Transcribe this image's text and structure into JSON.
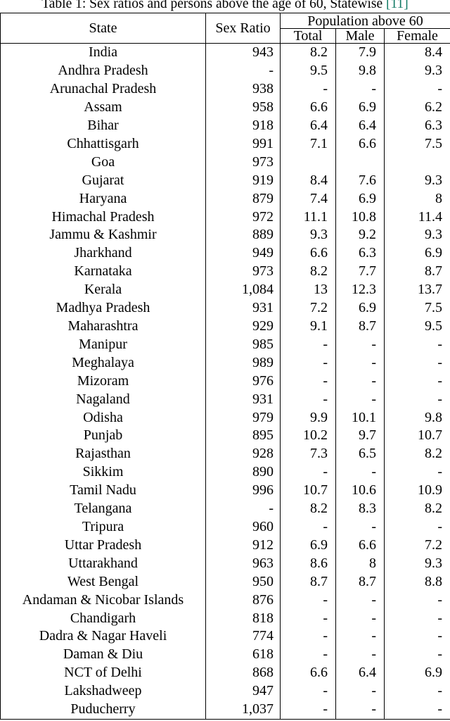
{
  "colors": {
    "citation": "#117a65",
    "text": "#000000",
    "background": "#ffffff"
  },
  "caption": {
    "prefix": "Table 1: Sex ratios and persons above the age of 60, Statewise ",
    "citation": "[11]"
  },
  "table": {
    "headers": {
      "state": "State",
      "sex_ratio": "Sex Ratio",
      "pop_group": "Population above 60",
      "total": "Total",
      "male": "Male",
      "female": "Female"
    },
    "rows": [
      {
        "state": "India",
        "sex_ratio": "943",
        "total": "8.2",
        "male": "7.9",
        "female": "8.4"
      },
      {
        "state": "Andhra Pradesh",
        "sex_ratio": "-",
        "total": "9.5",
        "male": "9.8",
        "female": "9.3"
      },
      {
        "state": "Arunachal Pradesh",
        "sex_ratio": "938",
        "total": "-",
        "male": "-",
        "female": "-"
      },
      {
        "state": "Assam",
        "sex_ratio": "958",
        "total": "6.6",
        "male": "6.9",
        "female": "6.2"
      },
      {
        "state": "Bihar",
        "sex_ratio": "918",
        "total": "6.4",
        "male": "6.4",
        "female": "6.3"
      },
      {
        "state": "Chhattisgarh",
        "sex_ratio": "991",
        "total": "7.1",
        "male": "6.6",
        "female": "7.5"
      },
      {
        "state": "Goa",
        "sex_ratio": "973",
        "total": "",
        "male": "",
        "female": ""
      },
      {
        "state": "Gujarat",
        "sex_ratio": "919",
        "total": "8.4",
        "male": "7.6",
        "female": "9.3"
      },
      {
        "state": "Haryana",
        "sex_ratio": "879",
        "total": "7.4",
        "male": "6.9",
        "female": "8"
      },
      {
        "state": "Himachal Pradesh",
        "sex_ratio": "972",
        "total": "11.1",
        "male": "10.8",
        "female": "11.4"
      },
      {
        "state": "Jammu & Kashmir",
        "sex_ratio": "889",
        "total": "9.3",
        "male": "9.2",
        "female": "9.3"
      },
      {
        "state": "Jharkhand",
        "sex_ratio": "949",
        "total": "6.6",
        "male": "6.3",
        "female": "6.9"
      },
      {
        "state": "Karnataka",
        "sex_ratio": "973",
        "total": "8.2",
        "male": "7.7",
        "female": "8.7"
      },
      {
        "state": "Kerala",
        "sex_ratio": "1,084",
        "total": "13",
        "male": "12.3",
        "female": "13.7"
      },
      {
        "state": "Madhya Pradesh",
        "sex_ratio": "931",
        "total": "7.2",
        "male": "6.9",
        "female": "7.5"
      },
      {
        "state": "Maharashtra",
        "sex_ratio": "929",
        "total": "9.1",
        "male": "8.7",
        "female": "9.5"
      },
      {
        "state": "Manipur",
        "sex_ratio": "985",
        "total": "-",
        "male": "-",
        "female": "-"
      },
      {
        "state": "Meghalaya",
        "sex_ratio": "989",
        "total": "-",
        "male": "-",
        "female": "-"
      },
      {
        "state": "Mizoram",
        "sex_ratio": "976",
        "total": "-",
        "male": "-",
        "female": "-"
      },
      {
        "state": "Nagaland",
        "sex_ratio": "931",
        "total": "-",
        "male": "-",
        "female": "-"
      },
      {
        "state": "Odisha",
        "sex_ratio": "979",
        "total": "9.9",
        "male": "10.1",
        "female": "9.8"
      },
      {
        "state": "Punjab",
        "sex_ratio": "895",
        "total": "10.2",
        "male": "9.7",
        "female": "10.7"
      },
      {
        "state": "Rajasthan",
        "sex_ratio": "928",
        "total": "7.3",
        "male": "6.5",
        "female": "8.2"
      },
      {
        "state": "Sikkim",
        "sex_ratio": "890",
        "total": "-",
        "male": "-",
        "female": "-"
      },
      {
        "state": "Tamil Nadu",
        "sex_ratio": "996",
        "total": "10.7",
        "male": "10.6",
        "female": "10.9"
      },
      {
        "state": "Telangana",
        "sex_ratio": "-",
        "total": "8.2",
        "male": "8.3",
        "female": "8.2"
      },
      {
        "state": "Tripura",
        "sex_ratio": "960",
        "total": "-",
        "male": "-",
        "female": "-"
      },
      {
        "state": "Uttar Pradesh",
        "sex_ratio": "912",
        "total": "6.9",
        "male": "6.6",
        "female": "7.2"
      },
      {
        "state": "Uttarakhand",
        "sex_ratio": "963",
        "total": "8.6",
        "male": "8",
        "female": "9.3"
      },
      {
        "state": "West Bengal",
        "sex_ratio": "950",
        "total": "8.7",
        "male": "8.7",
        "female": "8.8"
      },
      {
        "state": "Andaman & Nicobar Islands",
        "sex_ratio": "876",
        "total": "-",
        "male": "-",
        "female": "-"
      },
      {
        "state": "Chandigarh",
        "sex_ratio": "818",
        "total": "-",
        "male": "-",
        "female": "-"
      },
      {
        "state": "Dadra & Nagar Haveli",
        "sex_ratio": "774",
        "total": "-",
        "male": "-",
        "female": "-"
      },
      {
        "state": "Daman & Diu",
        "sex_ratio": "618",
        "total": "-",
        "male": "-",
        "female": "-"
      },
      {
        "state": "NCT of Delhi",
        "sex_ratio": "868",
        "total": "6.6",
        "male": "6.4",
        "female": "6.9"
      },
      {
        "state": "Lakshadweep",
        "sex_ratio": "947",
        "total": "-",
        "male": "-",
        "female": "-"
      },
      {
        "state": "Puducherry",
        "sex_ratio": "1,037",
        "total": "-",
        "male": "-",
        "female": "-"
      }
    ]
  }
}
